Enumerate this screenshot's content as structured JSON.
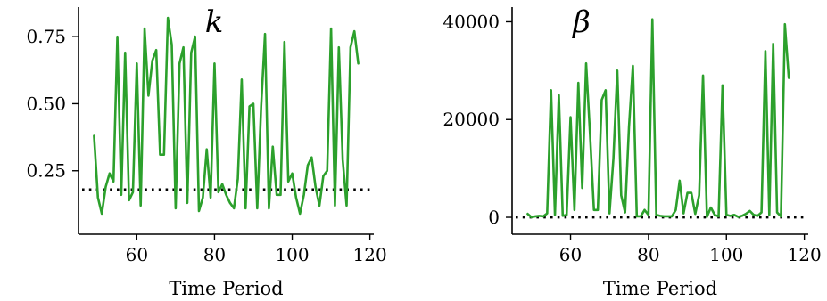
{
  "chart_data": [
    {
      "type": "line",
      "title": "k",
      "xlabel": "Time Period",
      "ylabel": "",
      "xlim": [
        45,
        121
      ],
      "ylim": [
        0.04,
        0.86
      ],
      "xticks": [
        60,
        80,
        100,
        120
      ],
      "yticks": [
        0.25,
        0.5,
        0.75
      ],
      "ytick_labels": [
        "0.25",
        "0.50",
        "0.75"
      ],
      "grid": false,
      "series": [
        {
          "color": "#2ca02c",
          "x": [
            49,
            50,
            51,
            52,
            53,
            54,
            55,
            56,
            57,
            58,
            59,
            60,
            61,
            62,
            63,
            64,
            65,
            66,
            67,
            68,
            69,
            70,
            71,
            72,
            73,
            74,
            75,
            76,
            77,
            78,
            79,
            80,
            81,
            82,
            83,
            84,
            85,
            86,
            87,
            88,
            89,
            90,
            91,
            92,
            93,
            94,
            95,
            96,
            97,
            98,
            99,
            100,
            101,
            102,
            103,
            104,
            105,
            106,
            107,
            108,
            109,
            110,
            111,
            112,
            113,
            114,
            115,
            116,
            117
          ],
          "y": [
            0.38,
            0.15,
            0.09,
            0.19,
            0.24,
            0.21,
            0.75,
            0.16,
            0.69,
            0.14,
            0.17,
            0.65,
            0.12,
            0.78,
            0.53,
            0.66,
            0.7,
            0.31,
            0.31,
            0.82,
            0.72,
            0.11,
            0.65,
            0.71,
            0.13,
            0.69,
            0.75,
            0.1,
            0.15,
            0.33,
            0.15,
            0.65,
            0.17,
            0.2,
            0.16,
            0.13,
            0.11,
            0.22,
            0.59,
            0.11,
            0.49,
            0.5,
            0.11,
            0.49,
            0.76,
            0.11,
            0.34,
            0.16,
            0.16,
            0.73,
            0.21,
            0.24,
            0.15,
            0.09,
            0.16,
            0.27,
            0.3,
            0.19,
            0.12,
            0.23,
            0.25,
            0.78,
            0.12,
            0.71,
            0.29,
            0.12,
            0.71,
            0.77,
            0.65
          ]
        }
      ],
      "reference_line": {
        "y": 0.18,
        "style": "dotted",
        "color": "#000000"
      }
    },
    {
      "type": "line",
      "title": "β",
      "xlabel": "Time Period",
      "ylabel": "",
      "xlim": [
        45,
        121
      ],
      "ylim": [
        -2000,
        43000
      ],
      "xticks": [
        60,
        80,
        100,
        120
      ],
      "yticks": [
        0,
        20000,
        40000
      ],
      "ytick_labels": [
        "0",
        "20000",
        "40000"
      ],
      "grid": false,
      "series": [
        {
          "color": "#2ca02c",
          "x": [
            49,
            50,
            51,
            52,
            53,
            54,
            55,
            56,
            57,
            58,
            59,
            60,
            61,
            62,
            63,
            64,
            65,
            66,
            67,
            68,
            69,
            70,
            71,
            72,
            73,
            74,
            75,
            76,
            77,
            78,
            79,
            80,
            81,
            82,
            83,
            84,
            85,
            86,
            87,
            88,
            89,
            90,
            91,
            92,
            93,
            94,
            95,
            96,
            97,
            98,
            99,
            100,
            101,
            102,
            103,
            104,
            105,
            106,
            107,
            108,
            109,
            110,
            111,
            112,
            113,
            114,
            115,
            116
          ],
          "y": [
            700,
            0,
            200,
            300,
            200,
            800,
            26000,
            500,
            25000,
            300,
            500,
            20500,
            1500,
            27500,
            6000,
            31500,
            17000,
            1500,
            1500,
            24000,
            26000,
            800,
            12000,
            30000,
            4500,
            1000,
            18500,
            31000,
            200,
            200,
            1500,
            500,
            40500,
            500,
            300,
            200,
            200,
            200,
            1500,
            7500,
            800,
            5000,
            5000,
            700,
            4500,
            29000,
            100,
            2000,
            500,
            200,
            27000,
            500,
            300,
            500,
            100,
            300,
            700,
            1300,
            500,
            300,
            1000,
            34000,
            500,
            35500,
            1000,
            200,
            39500,
            28500
          ]
        }
      ],
      "reference_line": {
        "y": 0,
        "style": "dotted",
        "color": "#000000"
      }
    }
  ]
}
